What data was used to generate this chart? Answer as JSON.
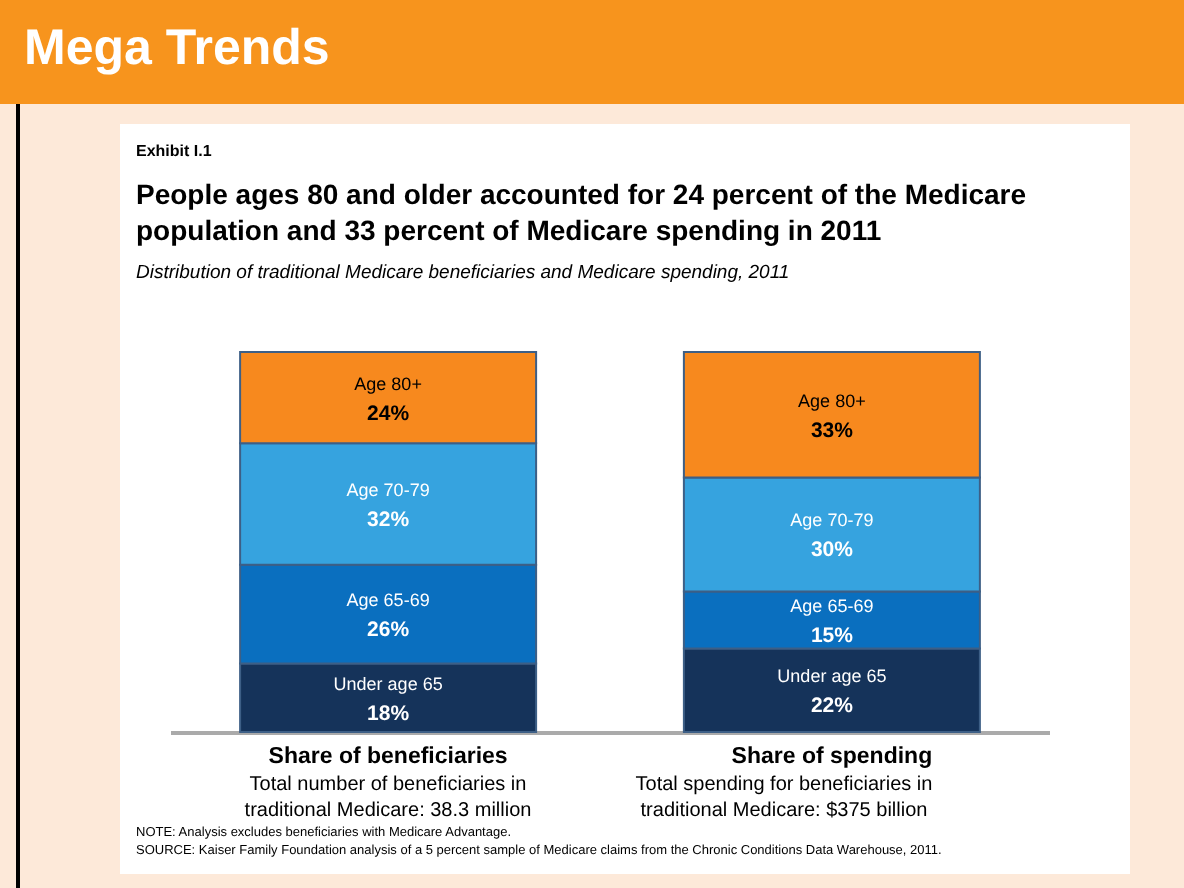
{
  "chart_data": {
    "type": "bar",
    "stacked": true,
    "title": "People ages 80 and older accounted for 24 percent of the Medicare population and 33 percent of Medicare spending in 2011",
    "subtitle": "Distribution of traditional Medicare beneficiaries and Medicare spending, 2011",
    "categories": [
      "Share of beneficiaries",
      "Share of spending"
    ],
    "series": [
      {
        "name": "Under age 65",
        "color": "#15335a",
        "values": [
          18,
          22
        ],
        "value_labels": [
          "18%",
          "22%"
        ]
      },
      {
        "name": "Age 65-69",
        "color": "#0a6fbf",
        "values": [
          26,
          15
        ],
        "value_labels": [
          "26%",
          "15%"
        ]
      },
      {
        "name": "Age 70-79",
        "color": "#36a3df",
        "values": [
          32,
          30
        ],
        "value_labels": [
          "32%",
          "30%"
        ]
      },
      {
        "name": "Age 80+",
        "color": "#f7891e",
        "values": [
          24,
          33
        ],
        "value_labels": [
          "24%",
          "33%"
        ]
      }
    ],
    "annotations": [
      "Mega Trends",
      "Exhibit I.1",
      "Total number of beneficiaries in traditional Medicare: 38.3 million",
      "Total spending for beneficiaries in traditional Medicare: $375 billion",
      "NOTE:  Analysis excludes beneficiaries with Medicare Advantage.",
      "SOURCE: Kaiser Family Foundation analysis of a 5 percent sample of Medicare claims from the Chronic Conditions Data Warehouse, 2011."
    ]
  }
}
